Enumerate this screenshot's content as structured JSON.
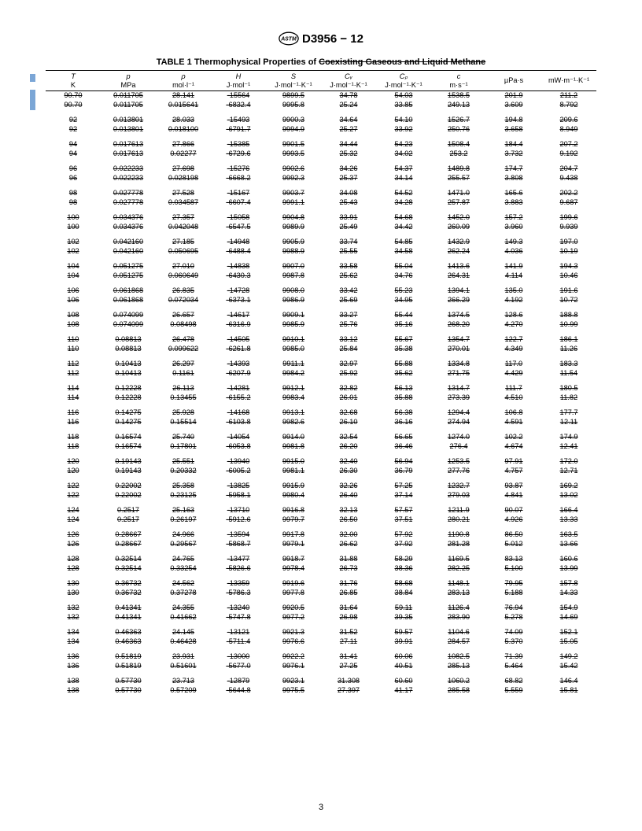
{
  "header": {
    "standard_number": "D3956 − 12",
    "logo_alt": "ASTM"
  },
  "caption": {
    "prefix": "TABLE 1 Thermophysical Properties of ",
    "struck": "Coexisting Gaseous and Liquid Methane"
  },
  "page_number": "3",
  "columns": [
    {
      "sym": "T",
      "unit": "K"
    },
    {
      "sym": "p",
      "unit": "MPa"
    },
    {
      "sym": "ρ",
      "unit": "mol·l⁻¹"
    },
    {
      "sym": "H",
      "unit": "J·mol⁻¹"
    },
    {
      "sym": "S",
      "unit": "J·mol⁻¹·K⁻¹"
    },
    {
      "sym": "Cᵥ",
      "unit": "J·mol⁻¹·K⁻¹"
    },
    {
      "sym": "Cₚ",
      "unit": "J·mol⁻¹·K⁻¹"
    },
    {
      "sym": "c",
      "unit": "m·s⁻¹"
    },
    {
      "sym": "",
      "unit": "µPa·s"
    },
    {
      "sym": "",
      "unit": "mW·m⁻¹·K⁻¹"
    }
  ],
  "groups": [
    [
      [
        "90.70",
        "0.011705",
        "28.141",
        "-15564",
        "9899.5",
        "34.78",
        "54.03",
        "1538.5",
        "201.9",
        "211.2"
      ],
      [
        "90.70",
        "0.011705",
        "0.015641",
        "-6832.4",
        "9995.8",
        "25.24",
        "33.85",
        "249.13",
        "3.609",
        "8.792"
      ]
    ],
    [
      [
        "92",
        "0.013801",
        "28.033",
        "-15493",
        "9900.3",
        "34.64",
        "54.10",
        "1526.7",
        "194.8",
        "209.6"
      ],
      [
        "92",
        "0.013801",
        "0.018100",
        "-6791.7",
        "9994.9",
        "25.27",
        "33.92",
        "250.76",
        "3.658",
        "8.949"
      ]
    ],
    [
      [
        "94",
        "0.017613",
        "27.866",
        "-15385",
        "9901.5",
        "34.44",
        "54.23",
        "1508.4",
        "184.4",
        "207.2"
      ],
      [
        "94",
        "0.017613",
        "0.02277",
        "-6729.6",
        "9993.5",
        "25.32",
        "34.02",
        "253.2",
        "3.732",
        "9.192"
      ]
    ],
    [
      [
        "96",
        "0.022233",
        "27.698",
        "-15276",
        "9902.6",
        "34.26",
        "54.37",
        "1489.8",
        "174.7",
        "204.7"
      ],
      [
        "96",
        "0.022233",
        "0.028198",
        "-6668.2",
        "9992.3",
        "25.37",
        "34.14",
        "255.57",
        "3.808",
        "9.438"
      ]
    ],
    [
      [
        "98",
        "0.027778",
        "27.528",
        "-15167",
        "9903.7",
        "34.08",
        "54.52",
        "1471.0",
        "165.6",
        "202.2"
      ],
      [
        "98",
        "0.027778",
        "0.034587",
        "-6607.4",
        "9991.1",
        "25.43",
        "34.28",
        "257.87",
        "3.883",
        "9.687"
      ]
    ],
    [
      [
        "100",
        "0.034376",
        "27.357",
        "-15058",
        "9904.8",
        "33.91",
        "54.68",
        "1452.0",
        "157.2",
        "199.6"
      ],
      [
        "100",
        "0.034376",
        "0.042048",
        "-6547.5",
        "9989.9",
        "25.49",
        "34.42",
        "260.09",
        "3.960",
        "9.939"
      ]
    ],
    [
      [
        "102",
        "0.042160",
        "27.185",
        "-14948",
        "9905.9",
        "33.74",
        "54.85",
        "1432.9",
        "149.3",
        "197.0"
      ],
      [
        "102",
        "0.042160",
        "0.050695",
        "-6488.4",
        "9988.9",
        "25.55",
        "34.58",
        "262.24",
        "4.036",
        "10.19"
      ]
    ],
    [
      [
        "104",
        "0.051275",
        "27.010",
        "-14838",
        "9907.0",
        "33.58",
        "55.04",
        "1413.6",
        "141.9",
        "194.3"
      ],
      [
        "104",
        "0.051275",
        "0.060649",
        "-6430.3",
        "9987.8",
        "25.62",
        "34.76",
        "264.31",
        "4.114",
        "10.46"
      ]
    ],
    [
      [
        "106",
        "0.061868",
        "26.835",
        "-14728",
        "9908.0",
        "33.42",
        "55.23",
        "1394.1",
        "135.0",
        "191.6"
      ],
      [
        "106",
        "0.061868",
        "0.072034",
        "-6373.1",
        "9986.9",
        "25.69",
        "34.95",
        "266.29",
        "4.192",
        "10.72"
      ]
    ],
    [
      [
        "108",
        "0.074099",
        "26.657",
        "-14617",
        "9909.1",
        "33.27",
        "55.44",
        "1374.5",
        "128.6",
        "188.8"
      ],
      [
        "108",
        "0.074099",
        "0.08498",
        "-6316.9",
        "9985.9",
        "25.76",
        "35.16",
        "268.20",
        "4.270",
        "10.99"
      ]
    ],
    [
      [
        "110",
        "0.08813",
        "26.478",
        "-14505",
        "9910.1",
        "33.12",
        "55.67",
        "1354.7",
        "122.7",
        "186.1"
      ],
      [
        "110",
        "0.08813",
        "0.099622",
        "-6261.8",
        "9985.0",
        "25.84",
        "35.38",
        "270.01",
        "4.349",
        "11.26"
      ]
    ],
    [
      [
        "112",
        "0.10413",
        "26.297",
        "-14393",
        "9911.1",
        "32.97",
        "55.88",
        "1334.8",
        "117.0",
        "183.3"
      ],
      [
        "112",
        "0.10413",
        "0.1161",
        "-6207.9",
        "9984.2",
        "25.92",
        "35.62",
        "271.75",
        "4.429",
        "11.54"
      ]
    ],
    [
      [
        "114",
        "0.12228",
        "26.113",
        "-14281",
        "9912.1",
        "32.82",
        "56.13",
        "1314.7",
        "111.7",
        "180.5"
      ],
      [
        "114",
        "0.12228",
        "0.13455",
        "-6155.2",
        "9983.4",
        "26.01",
        "35.88",
        "273.39",
        "4.510",
        "11.82"
      ]
    ],
    [
      [
        "116",
        "0.14275",
        "25.928",
        "-14168",
        "9913.1",
        "32.68",
        "56.38",
        "1294.4",
        "106.8",
        "177.7"
      ],
      [
        "116",
        "0.14275",
        "0.15514",
        "-6103.8",
        "9982.6",
        "26.10",
        "36.16",
        "274.94",
        "4.591",
        "12.11"
      ]
    ],
    [
      [
        "118",
        "0.16574",
        "25.740",
        "-14054",
        "9914.0",
        "32.54",
        "56.65",
        "1274.0",
        "102.2",
        "174.9"
      ],
      [
        "118",
        "0.16574",
        "0.17801",
        "-6053.8",
        "9981.8",
        "26.20",
        "36.46",
        "276.4",
        "4.674",
        "12.41"
      ]
    ],
    [
      [
        "120",
        "0.19143",
        "25.551",
        "-13940",
        "9915.0",
        "32.40",
        "56.94",
        "1253.5",
        "97.91",
        "172.0"
      ],
      [
        "120",
        "0.19143",
        "0.20332",
        "-6005.2",
        "9981.1",
        "26.30",
        "36.79",
        "277.76",
        "4.757",
        "12.71"
      ]
    ],
    [
      [
        "122",
        "0.22002",
        "25.358",
        "-13825",
        "9915.9",
        "32.26",
        "57.25",
        "1232.7",
        "93.87",
        "169.2"
      ],
      [
        "122",
        "0.22002",
        "0.23125",
        "-5958.1",
        "9980.4",
        "26.40",
        "37.14",
        "279.03",
        "4.841",
        "13.02"
      ]
    ],
    [
      [
        "124",
        "0.2517",
        "25.163",
        "-13710",
        "9916.8",
        "32.13",
        "57.57",
        "1211.9",
        "90.07",
        "166.4"
      ],
      [
        "124",
        "0.2517",
        "0.26197",
        "-5912.6",
        "9979.7",
        "26.50",
        "37.51",
        "280.21",
        "4.926",
        "13.33"
      ]
    ],
    [
      [
        "126",
        "0.28667",
        "24.966",
        "-13594",
        "9917.8",
        "32.00",
        "57.92",
        "1190.8",
        "86.50",
        "163.5"
      ],
      [
        "126",
        "0.28667",
        "0.29567",
        "-5868.7",
        "9979.1",
        "26.62",
        "37.92",
        "281.28",
        "5.012",
        "13.66"
      ]
    ],
    [
      [
        "128",
        "0.32514",
        "24.765",
        "-13477",
        "9918.7",
        "31.88",
        "58.29",
        "1169.5",
        "83.13",
        "160.6"
      ],
      [
        "128",
        "0.32514",
        "0.33254",
        "-5826.6",
        "9978.4",
        "26.73",
        "38.36",
        "282.25",
        "5.100",
        "13.99"
      ]
    ],
    [
      [
        "130",
        "0.36732",
        "24.562",
        "-13359",
        "9919.6",
        "31.76",
        "58.68",
        "1148.1",
        "79.95",
        "157.8"
      ],
      [
        "130",
        "0.36732",
        "0.37278",
        "-5786.3",
        "9977.8",
        "26.85",
        "38.84",
        "283.13",
        "5.188",
        "14.33"
      ]
    ],
    [
      [
        "132",
        "0.41341",
        "24.355",
        "-13240",
        "9920.5",
        "31.64",
        "59.11",
        "1126.4",
        "76.94",
        "154.9"
      ],
      [
        "132",
        "0.41341",
        "0.41662",
        "-5747.8",
        "9977.2",
        "26.98",
        "39.35",
        "283.90",
        "5.278",
        "14.69"
      ]
    ],
    [
      [
        "134",
        "0.46363",
        "24.145",
        "-13121",
        "9921.3",
        "31.52",
        "59.57",
        "1104.6",
        "74.09",
        "152.1"
      ],
      [
        "134",
        "0.46363",
        "0.46428",
        "-5711.4",
        "9976.6",
        "27.11",
        "39.91",
        "284.57",
        "5.370",
        "15.05"
      ]
    ],
    [
      [
        "136",
        "0.51819",
        "23.931",
        "-13000",
        "9922.2",
        "31.41",
        "60.06",
        "1082.5",
        "71.39",
        "149.2"
      ],
      [
        "136",
        "0.51819",
        "0.51601",
        "-5677.0",
        "9976.1",
        "27.25",
        "40.51",
        "285.13",
        "5.464",
        "15.42"
      ]
    ],
    [
      [
        "138",
        "0.57730",
        "23.713",
        "-12879",
        "9923.1",
        "31.308",
        "60.60",
        "1060.2",
        "68.82",
        "146.4"
      ],
      [
        "138",
        "0.57730",
        "0.57209",
        "-5644.8",
        "9975.5",
        "27.397",
        "41.17",
        "285.58",
        "5.559",
        "15.81"
      ]
    ]
  ]
}
